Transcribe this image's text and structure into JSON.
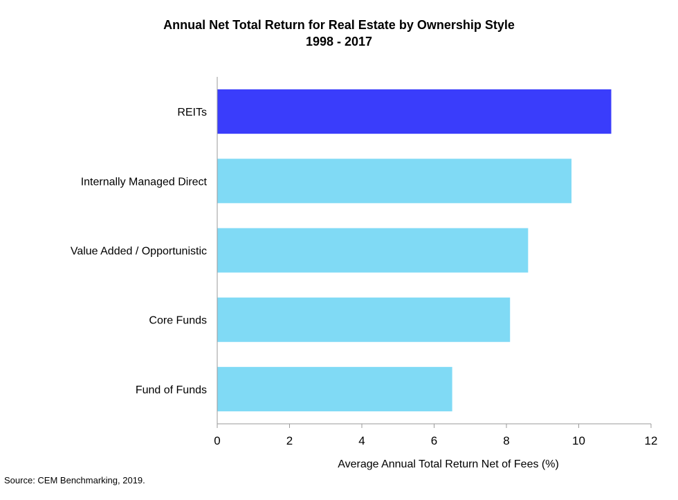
{
  "chart_data": {
    "type": "bar",
    "orientation": "horizontal",
    "title": "Annual Net Total Return for Real Estate by Ownership Style",
    "subtitle": "1998 - 2017",
    "categories": [
      "REITs",
      "Internally Managed Direct",
      "Value Added / Opportunistic",
      "Core Funds",
      "Fund of Funds"
    ],
    "values": [
      10.9,
      9.8,
      8.6,
      8.1,
      6.5
    ],
    "bar_colors": [
      "#3a3dfb",
      "#80daf5",
      "#80daf5",
      "#80daf5",
      "#80daf5"
    ],
    "xlabel": "Average Annual Total Return Net of Fees (%)",
    "ylabel": "",
    "xlim": [
      0,
      12
    ],
    "xticks": [
      0,
      2,
      4,
      6,
      8,
      10,
      12
    ],
    "grid": false,
    "legend": "none"
  },
  "source": "Source: CEM Benchmarking, 2019."
}
